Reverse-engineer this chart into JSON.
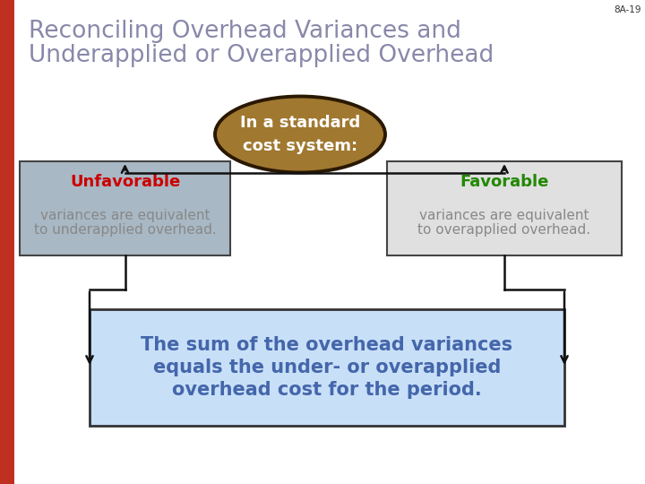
{
  "title_line1": "Reconciling Overhead Variances and",
  "title_line2": "Underapplied or Overapplied Overhead",
  "title_color": "#8888aa",
  "slide_label": "8A-19",
  "background_color": "#ffffff",
  "left_bar_color": "#c03020",
  "ellipse_text_line1": "In a standard",
  "ellipse_text_line2": "cost system:",
  "ellipse_fill": "#a07830",
  "ellipse_edge": "#2a1800",
  "left_box_fill": "#a8b8c4",
  "left_box_edge": "#444444",
  "left_box_title": "Unfavorable",
  "left_box_title_color": "#cc0000",
  "left_box_body1": "variances are equivalent",
  "left_box_body2": "to underapplied overhead.",
  "left_box_body_color": "#888888",
  "right_box_fill": "#e0e0e0",
  "right_box_edge": "#444444",
  "right_box_title": "Favorable",
  "right_box_title_color": "#228800",
  "right_box_body1": "variances are equivalent",
  "right_box_body2": "to overapplied overhead.",
  "right_box_body_color": "#888888",
  "bottom_box_fill": "#c8dff8",
  "bottom_box_edge": "#333333",
  "bottom_text_line1": "The sum of the overhead variances",
  "bottom_text_line2": "equals the under- or overapplied",
  "bottom_text_line3": "overhead cost for the period.",
  "bottom_text_color": "#4466aa",
  "line_color": "#111111"
}
